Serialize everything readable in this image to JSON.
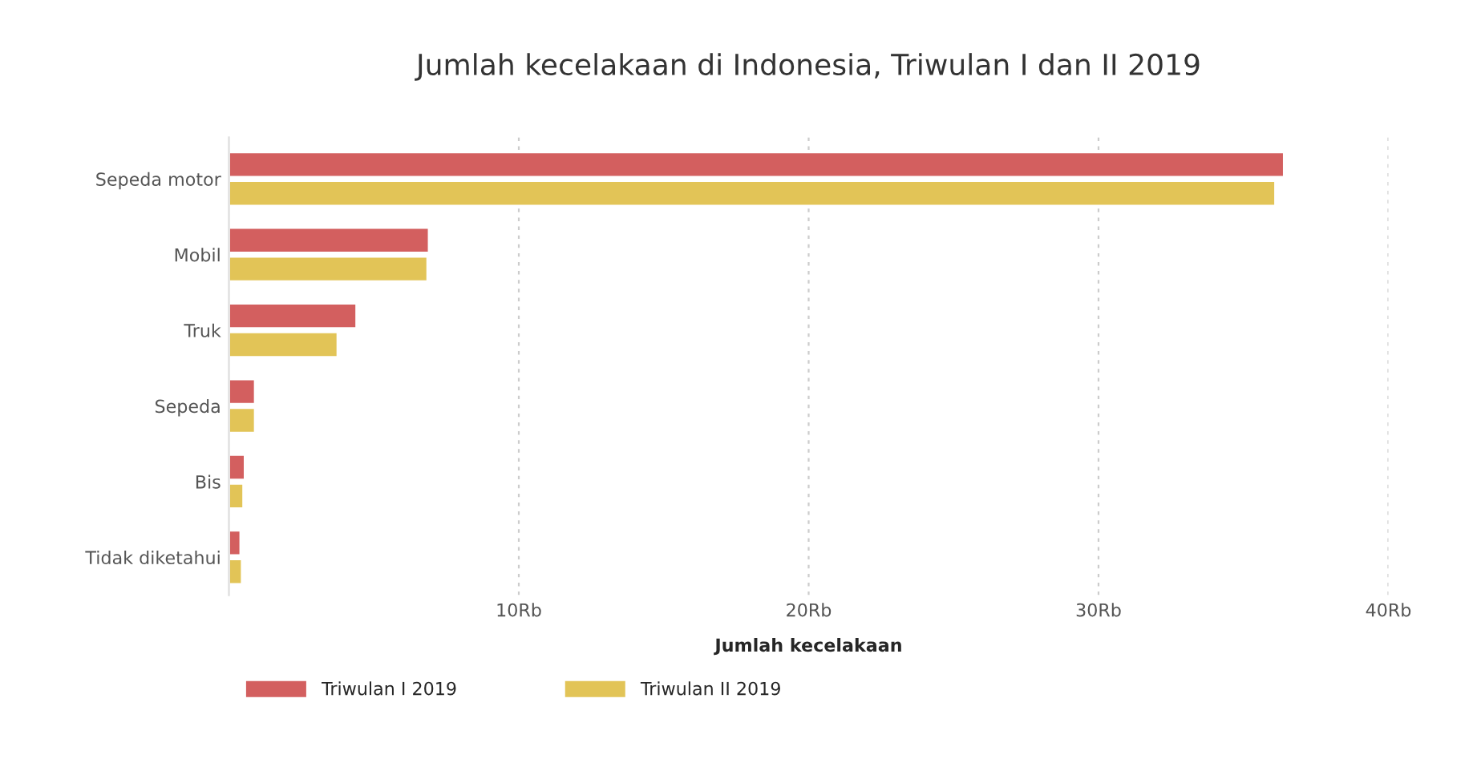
{
  "chart_data": {
    "type": "bar",
    "orientation": "horizontal",
    "title": "Jumlah kecelakaan di Indonesia, Triwulan I dan II 2019",
    "xlabel": "Jumlah kecelakaan",
    "categories": [
      "Sepeda motor",
      "Mobil",
      "Truk",
      "Sepeda",
      "Bis",
      "Tidak diketahui"
    ],
    "series": [
      {
        "name": "Triwulan I 2019",
        "color": "#d35f5f",
        "values": [
          36.4,
          6.9,
          4.4,
          0.9,
          0.55,
          0.4
        ]
      },
      {
        "name": "Triwulan II 2019",
        "color": "#e2c457",
        "values": [
          36.1,
          6.85,
          3.75,
          0.9,
          0.5,
          0.45
        ]
      }
    ],
    "xlim": [
      0,
      40
    ],
    "xticks": [
      {
        "value": 10,
        "label": "10Rb"
      },
      {
        "value": 20,
        "label": "20Rb"
      },
      {
        "value": 30,
        "label": "30Rb"
      },
      {
        "value": 40,
        "label": "40Rb"
      }
    ],
    "grid": "x",
    "legend": "bottom left"
  }
}
